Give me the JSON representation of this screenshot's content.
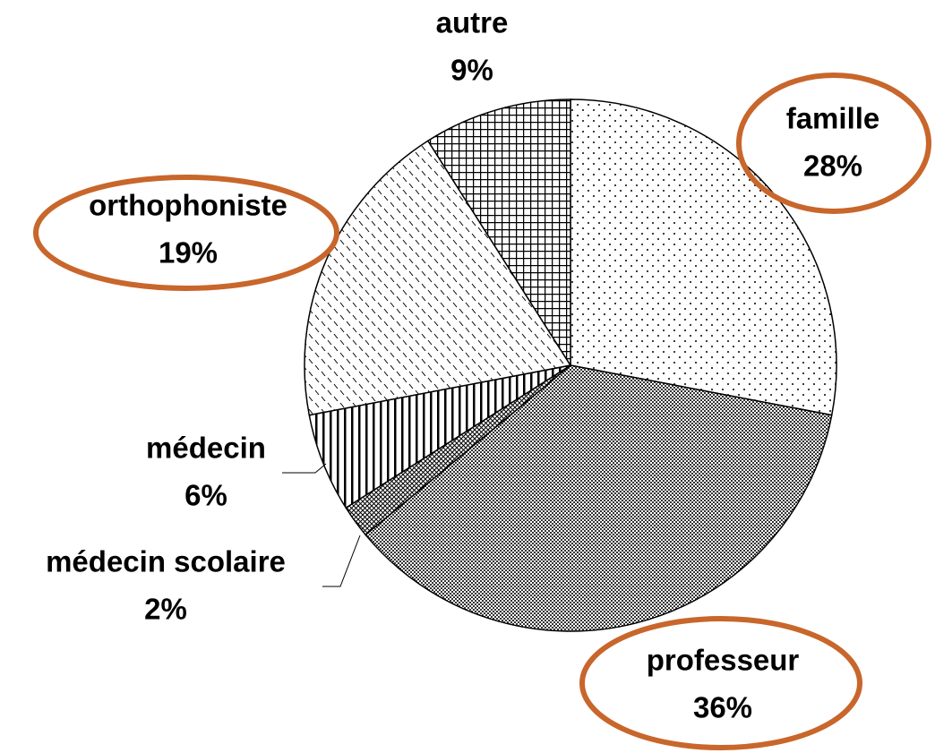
{
  "chart_data": {
    "type": "pie",
    "categories": [
      "famille",
      "professeur",
      "médecin scolaire",
      "médecin",
      "orthophoniste",
      "autre"
    ],
    "values": [
      28,
      36,
      2,
      6,
      19,
      9
    ],
    "value_labels": [
      "28%",
      "36%",
      "2%",
      "6%",
      "19%",
      "9%"
    ]
  }
}
